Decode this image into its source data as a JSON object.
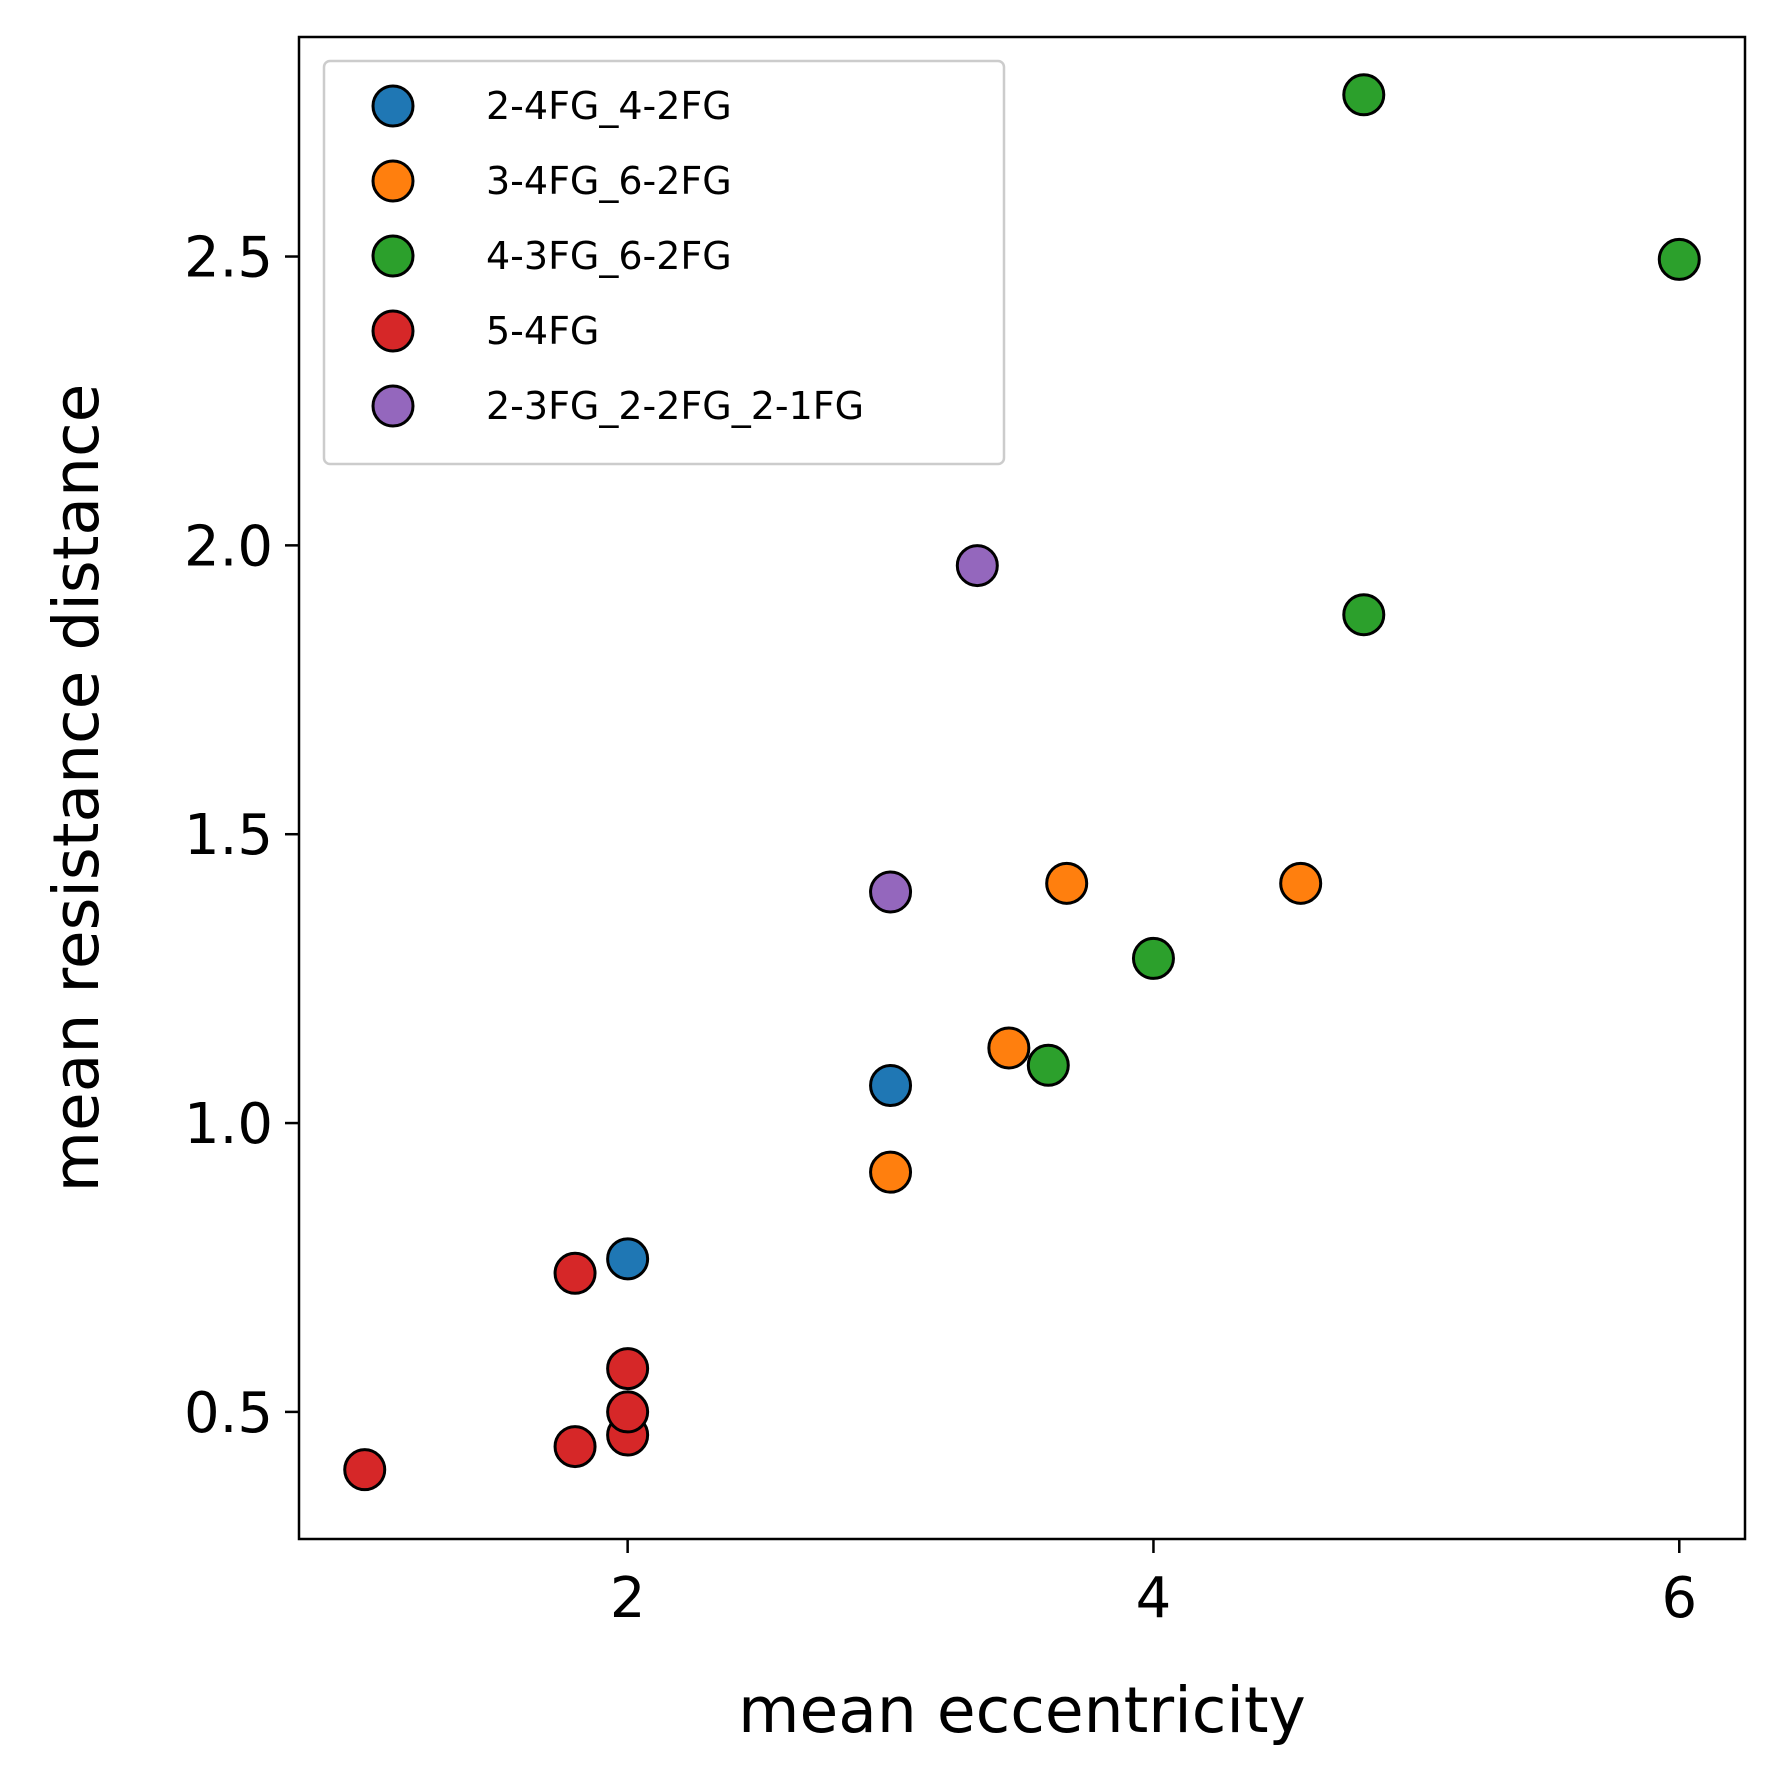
{
  "chart_data": {
    "type": "scatter",
    "title": "",
    "xlabel": "mean eccentricity",
    "ylabel": "mean resistance distance",
    "xlim": [
      0.75,
      6.25
    ],
    "ylim": [
      0.28,
      2.88
    ],
    "xticks": [
      2,
      4,
      6
    ],
    "yticks": [
      0.5,
      1.0,
      1.5,
      2.0,
      2.5
    ],
    "xtick_labels": [
      "2",
      "4",
      "6"
    ],
    "ytick_labels": [
      "0.5",
      "1.0",
      "1.5",
      "2.0",
      "2.5"
    ],
    "grid": false,
    "legend_position": "upper-left",
    "series": [
      {
        "name": "2-4FG_4-2FG",
        "color": "#1f77b4",
        "points": [
          [
            2.0,
            0.765
          ],
          [
            3.0,
            1.065
          ]
        ]
      },
      {
        "name": "3-4FG_6-2FG",
        "color": "#ff7f0e",
        "points": [
          [
            3.0,
            0.915
          ],
          [
            3.45,
            1.13
          ],
          [
            3.67,
            1.415
          ],
          [
            4.56,
            1.415
          ]
        ]
      },
      {
        "name": "4-3FG_6-2FG",
        "color": "#2ca02c",
        "points": [
          [
            3.6,
            1.1
          ],
          [
            4.0,
            1.285
          ],
          [
            4.8,
            1.88
          ],
          [
            4.8,
            2.78
          ],
          [
            6.0,
            2.495
          ]
        ]
      },
      {
        "name": "5-4FG",
        "color": "#d62728",
        "points": [
          [
            1.0,
            0.4
          ],
          [
            1.8,
            0.44
          ],
          [
            1.8,
            0.74
          ],
          [
            2.0,
            0.46
          ],
          [
            2.0,
            0.5
          ],
          [
            2.0,
            0.575
          ]
        ]
      },
      {
        "name": "2-3FG_2-2FG_2-1FG",
        "color": "#9467bd",
        "points": [
          [
            3.0,
            1.4
          ],
          [
            3.33,
            1.965
          ]
        ]
      }
    ]
  }
}
